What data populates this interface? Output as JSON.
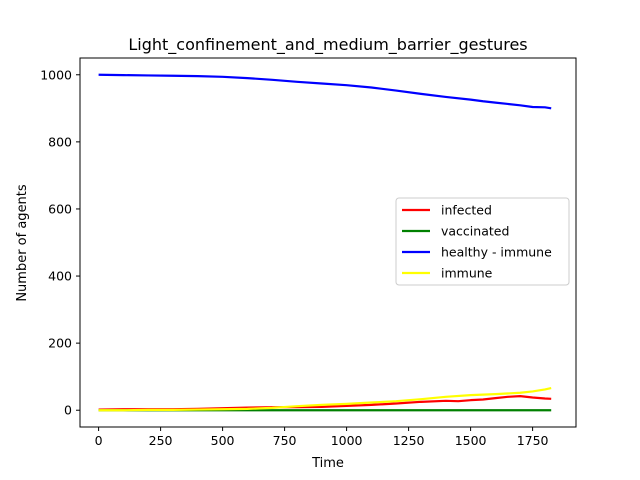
{
  "chart_data": {
    "type": "line",
    "title": "Light_confinement_and_medium_barrier_gestures",
    "xlabel": "Time",
    "ylabel": "Number of agents",
    "xlim": [
      -75,
      1925
    ],
    "ylim": [
      -50,
      1050
    ],
    "xticks": [
      0,
      250,
      500,
      750,
      1000,
      1250,
      1500,
      1750
    ],
    "yticks": [
      0,
      200,
      400,
      600,
      800,
      1000
    ],
    "grid": false,
    "legend_position": "center-right",
    "series": [
      {
        "name": "infected",
        "color": "#ff0000",
        "x": [
          0,
          100,
          200,
          300,
          400,
          500,
          600,
          700,
          800,
          900,
          1000,
          1100,
          1200,
          1300,
          1400,
          1450,
          1500,
          1550,
          1600,
          1650,
          1700,
          1750,
          1800,
          1825
        ],
        "y": [
          2,
          3,
          3,
          3,
          4,
          6,
          8,
          9,
          9,
          10,
          13,
          16,
          20,
          25,
          28,
          27,
          30,
          32,
          36,
          40,
          42,
          38,
          35,
          34
        ]
      },
      {
        "name": "vaccinated",
        "color": "#008000",
        "x": [
          0,
          1825
        ],
        "y": [
          0,
          0
        ]
      },
      {
        "name": "healthy - immune",
        "color": "#0000ff",
        "x": [
          0,
          100,
          200,
          300,
          400,
          500,
          600,
          700,
          800,
          900,
          1000,
          1100,
          1200,
          1300,
          1400,
          1500,
          1550,
          1600,
          1650,
          1700,
          1750,
          1800,
          1825
        ],
        "y": [
          1000,
          999,
          998,
          997,
          996,
          994,
          990,
          985,
          979,
          974,
          969,
          962,
          953,
          943,
          934,
          926,
          921,
          917,
          913,
          909,
          904,
          903,
          900
        ]
      },
      {
        "name": "immune",
        "color": "#ffff00",
        "x": [
          0,
          100,
          200,
          300,
          400,
          500,
          600,
          700,
          800,
          900,
          1000,
          1100,
          1200,
          1300,
          1400,
          1500,
          1600,
          1700,
          1750,
          1800,
          1825
        ],
        "y": [
          0,
          0,
          1,
          1,
          2,
          3,
          4,
          7,
          12,
          16,
          19,
          23,
          27,
          33,
          40,
          45,
          48,
          52,
          56,
          62,
          66
        ]
      }
    ]
  }
}
